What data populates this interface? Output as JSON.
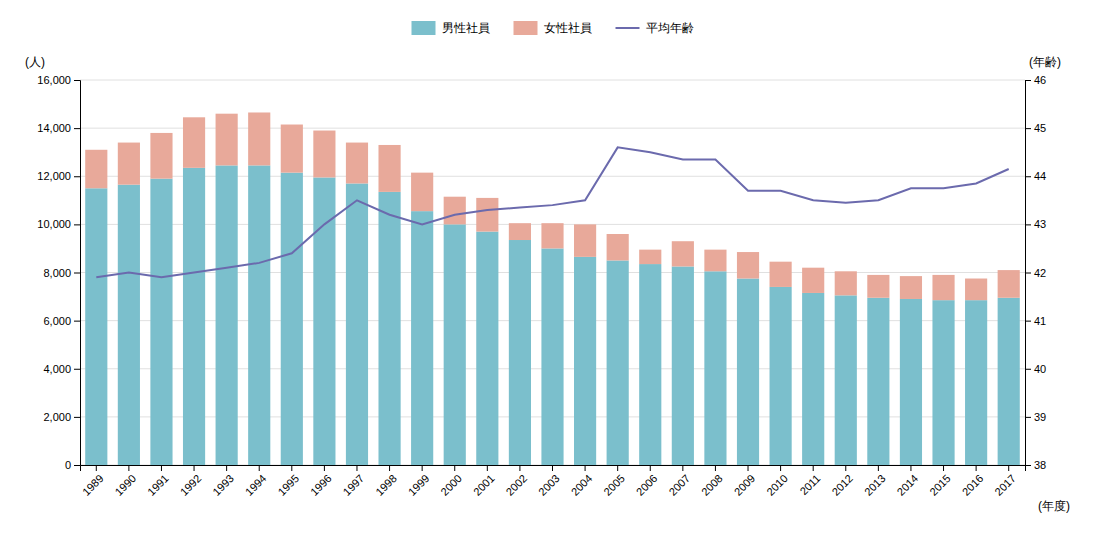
{
  "chart_data": {
    "type": "bar",
    "stacked": true,
    "grid": true,
    "legend": "top",
    "ylabel": "(人)",
    "y2label": "(年齢)",
    "xlabel": "(年度)",
    "categories": [
      "1989",
      "1990",
      "1991",
      "1992",
      "1993",
      "1994",
      "1995",
      "1996",
      "1997",
      "1998",
      "1999",
      "2000",
      "2001",
      "2002",
      "2003",
      "2004",
      "2005",
      "2006",
      "2007",
      "2008",
      "2009",
      "2010",
      "2011",
      "2012",
      "2013",
      "2014",
      "2015",
      "2016",
      "2017"
    ],
    "series": [
      {
        "name": "男性社員",
        "type": "bar",
        "color": "#7bbfcc",
        "values": [
          11500,
          11650,
          11900,
          12350,
          12450,
          12450,
          12150,
          11950,
          11700,
          11350,
          10550,
          10000,
          9700,
          9350,
          9000,
          8650,
          8500,
          8350,
          8250,
          8050,
          7750,
          7400,
          7150,
          7050,
          6950,
          6900,
          6850,
          6850,
          6950
        ]
      },
      {
        "name": "女性社員",
        "type": "bar",
        "color": "#e8a99a",
        "values": [
          1600,
          1750,
          1900,
          2100,
          2150,
          2200,
          2000,
          1950,
          1700,
          1950,
          1600,
          1150,
          1400,
          700,
          1050,
          1350,
          1100,
          600,
          1050,
          900,
          1100,
          1050,
          1050,
          1000,
          950,
          950,
          1050,
          900,
          1150
        ]
      },
      {
        "name": "平均年齢",
        "type": "line",
        "axis": "y2",
        "color": "#6b6aad",
        "values": [
          41.9,
          42.0,
          41.9,
          42.0,
          42.1,
          42.2,
          42.4,
          43.0,
          43.5,
          43.2,
          43.0,
          43.2,
          43.3,
          43.35,
          43.4,
          43.5,
          44.6,
          44.5,
          44.35,
          44.35,
          43.7,
          43.7,
          43.5,
          43.45,
          43.5,
          43.75,
          43.75,
          43.85,
          44.15
        ]
      }
    ],
    "ylim": [
      0,
      16000
    ],
    "yticks": [
      0,
      {
        "value": 2000,
        "label": "2,000"
      },
      {
        "value": 4000,
        "label": "4,000"
      },
      {
        "value": 6000,
        "label": "6,000"
      },
      {
        "value": 8000,
        "label": "8,000"
      },
      {
        "value": 10000,
        "label": "10,000"
      },
      {
        "value": 12000,
        "label": "12,000"
      },
      {
        "value": 14000,
        "label": "14,000"
      },
      {
        "value": 16000,
        "label": "16,000"
      }
    ],
    "y2lim": [
      38,
      46
    ],
    "y2ticks": [
      38,
      39,
      40,
      41,
      42,
      43,
      44,
      45,
      46
    ]
  }
}
